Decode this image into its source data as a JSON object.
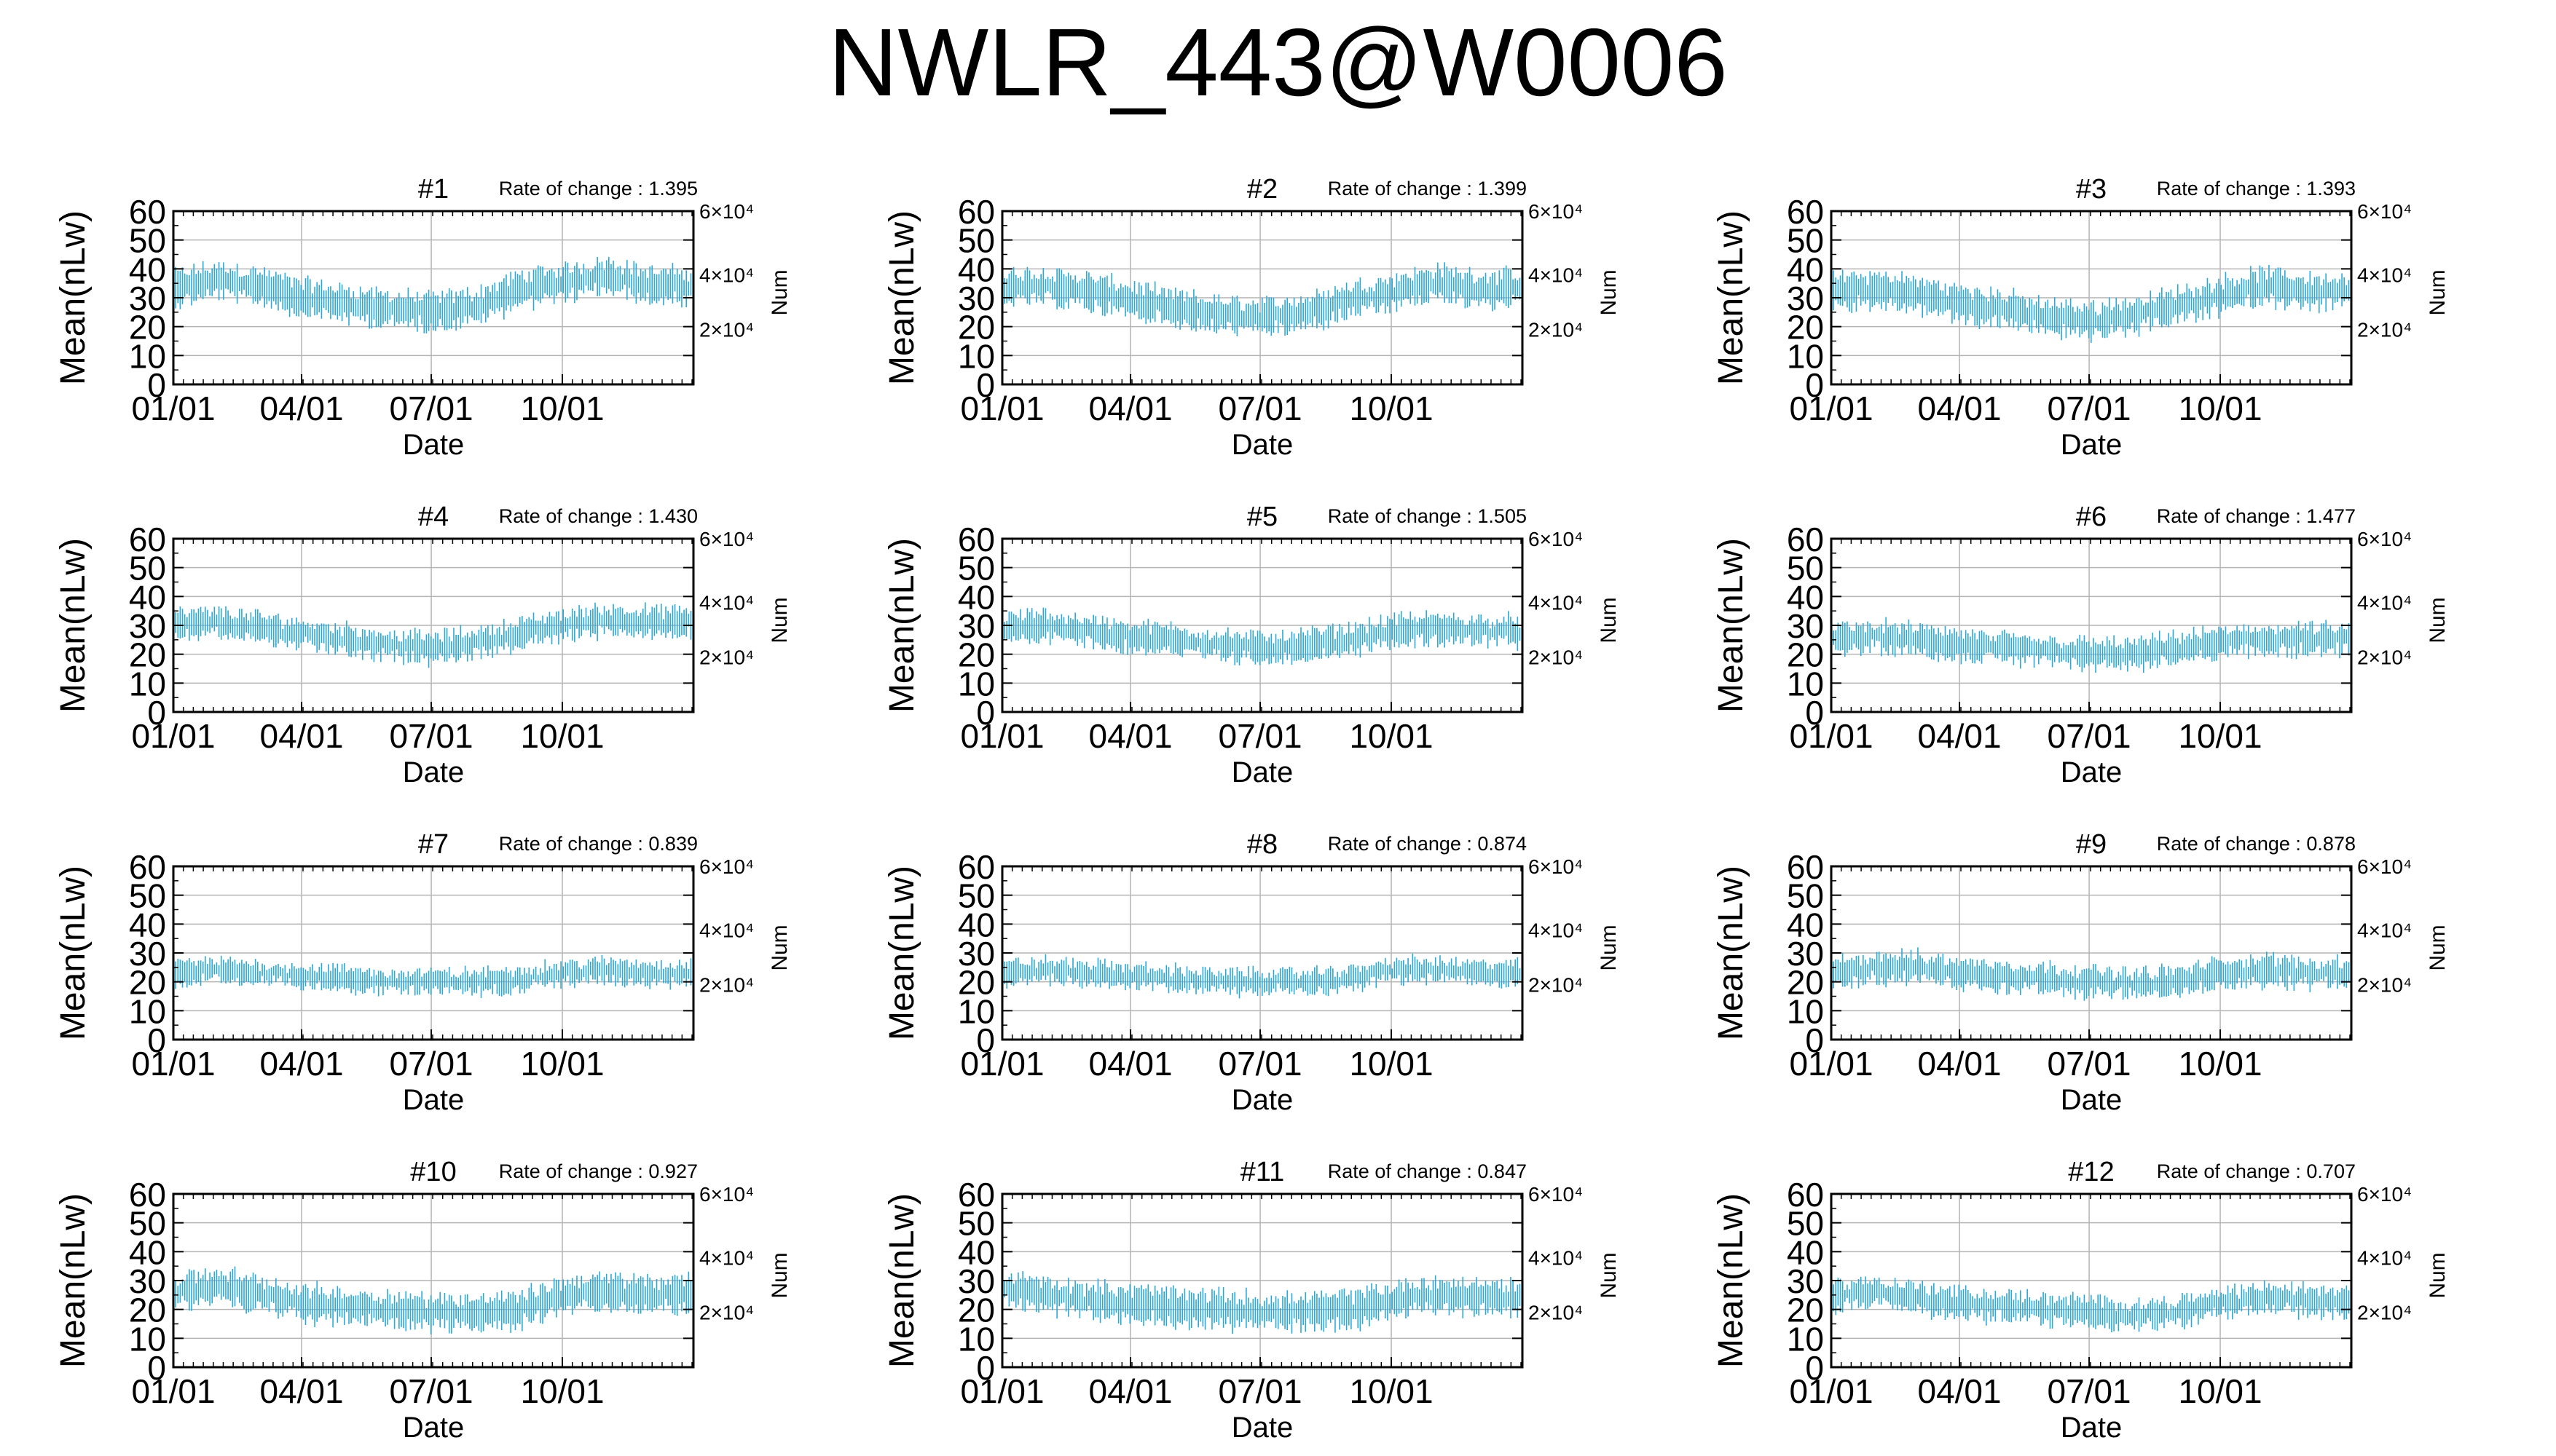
{
  "figure": {
    "title": "NWLR_443@W0006"
  },
  "colors": {
    "data": "#2aa8d8",
    "grid": "#b4b4b4",
    "axis": "#000000"
  },
  "chart_data": [
    {
      "type": "scatter",
      "title": "#1",
      "rate_label": "Rate of change : 1.395",
      "xlabel": "Date",
      "ylabel": "Mean(nLw)",
      "y2label": "Num",
      "x_ticks": [
        "01/01",
        "04/01",
        "07/01",
        "10/01"
      ],
      "y_ticks": [
        "0",
        "10",
        "20",
        "30",
        "40",
        "50",
        "60"
      ],
      "y2_ticks": [
        "2×10⁴",
        "4×10⁴",
        "6×10⁴"
      ],
      "ylim": [
        0,
        60
      ],
      "grid": true,
      "series_profile": {
        "months": [
          "01",
          "02",
          "03",
          "04",
          "05",
          "06",
          "07",
          "08",
          "09",
          "10",
          "11",
          "12"
        ],
        "mean_values": [
          33,
          36,
          34,
          30,
          28,
          26,
          25,
          27,
          33,
          35,
          38,
          34
        ],
        "spread": 6
      }
    },
    {
      "type": "scatter",
      "title": "#2",
      "rate_label": "Rate of change : 1.399",
      "xlabel": "Date",
      "ylabel": "Mean(nLw)",
      "y2label": "Num",
      "x_ticks": [
        "01/01",
        "04/01",
        "07/01",
        "10/01"
      ],
      "y_ticks": [
        "0",
        "10",
        "20",
        "30",
        "40",
        "50",
        "60"
      ],
      "y2_ticks": [
        "2×10⁴",
        "4×10⁴",
        "6×10⁴"
      ],
      "ylim": [
        0,
        60
      ],
      "grid": true,
      "series_profile": {
        "months": [
          "01",
          "02",
          "03",
          "04",
          "05",
          "06",
          "07",
          "08",
          "09",
          "10",
          "11",
          "12"
        ],
        "mean_values": [
          33,
          34,
          32,
          29,
          26,
          24,
          23,
          25,
          29,
          32,
          35,
          33
        ],
        "spread": 6
      }
    },
    {
      "type": "scatter",
      "title": "#3",
      "rate_label": "Rate of change : 1.393",
      "xlabel": "Date",
      "ylabel": "Mean(nLw)",
      "y2label": "Num",
      "x_ticks": [
        "01/01",
        "04/01",
        "07/01",
        "10/01"
      ],
      "y_ticks": [
        "0",
        "10",
        "20",
        "30",
        "40",
        "50",
        "60"
      ],
      "y2_ticks": [
        "2×10⁴",
        "4×10⁴",
        "6×10⁴"
      ],
      "ylim": [
        0,
        60
      ],
      "grid": true,
      "series_profile": {
        "months": [
          "01",
          "02",
          "03",
          "04",
          "05",
          "06",
          "07",
          "08",
          "09",
          "10",
          "11",
          "12"
        ],
        "mean_values": [
          32,
          33,
          31,
          28,
          26,
          23,
          22,
          24,
          27,
          31,
          34,
          32
        ],
        "spread": 6
      }
    },
    {
      "type": "scatter",
      "title": "#4",
      "rate_label": "Rate of change : 1.430",
      "xlabel": "Date",
      "ylabel": "Mean(nLw)",
      "y2label": "Num",
      "x_ticks": [
        "01/01",
        "04/01",
        "07/01",
        "10/01"
      ],
      "y_ticks": [
        "0",
        "10",
        "20",
        "30",
        "40",
        "50",
        "60"
      ],
      "y2_ticks": [
        "2×10⁴",
        "4×10⁴",
        "6×10⁴"
      ],
      "ylim": [
        0,
        60
      ],
      "grid": true,
      "series_profile": {
        "months": [
          "01",
          "02",
          "03",
          "04",
          "05",
          "06",
          "07",
          "08",
          "09",
          "10",
          "11",
          "12"
        ],
        "mean_values": [
          30,
          31,
          29,
          27,
          25,
          23,
          22,
          24,
          27,
          30,
          32,
          31
        ],
        "spread": 5
      }
    },
    {
      "type": "scatter",
      "title": "#5",
      "rate_label": "Rate of change : 1.505",
      "xlabel": "Date",
      "ylabel": "Mean(nLw)",
      "y2label": "Num",
      "x_ticks": [
        "01/01",
        "04/01",
        "07/01",
        "10/01"
      ],
      "y_ticks": [
        "0",
        "10",
        "20",
        "30",
        "40",
        "50",
        "60"
      ],
      "y2_ticks": [
        "2×10⁴",
        "4×10⁴",
        "6×10⁴"
      ],
      "ylim": [
        0,
        60
      ],
      "grid": true,
      "series_profile": {
        "months": [
          "01",
          "02",
          "03",
          "04",
          "05",
          "06",
          "07",
          "08",
          "09",
          "10",
          "11",
          "12"
        ],
        "mean_values": [
          29,
          30,
          28,
          26,
          25,
          23,
          22,
          23,
          25,
          28,
          29,
          28
        ],
        "spread": 5
      }
    },
    {
      "type": "scatter",
      "title": "#6",
      "rate_label": "Rate of change : 1.477",
      "xlabel": "Date",
      "ylabel": "Mean(nLw)",
      "y2label": "Num",
      "x_ticks": [
        "01/01",
        "04/01",
        "07/01",
        "10/01"
      ],
      "y_ticks": [
        "0",
        "10",
        "20",
        "30",
        "40",
        "50",
        "60"
      ],
      "y2_ticks": [
        "2×10⁴",
        "4×10⁴",
        "6×10⁴"
      ],
      "ylim": [
        0,
        60
      ],
      "grid": true,
      "series_profile": {
        "months": [
          "01",
          "02",
          "03",
          "04",
          "05",
          "06",
          "07",
          "08",
          "09",
          "10",
          "11",
          "12"
        ],
        "mean_values": [
          25,
          26,
          25,
          23,
          22,
          21,
          20,
          20,
          22,
          24,
          25,
          25
        ],
        "spread": 5
      }
    },
    {
      "type": "scatter",
      "title": "#7",
      "rate_label": "Rate of change : 0.839",
      "xlabel": "Date",
      "ylabel": "Mean(nLw)",
      "y2label": "Num",
      "x_ticks": [
        "01/01",
        "04/01",
        "07/01",
        "10/01"
      ],
      "y_ticks": [
        "0",
        "10",
        "20",
        "30",
        "40",
        "50",
        "60"
      ],
      "y2_ticks": [
        "2×10⁴",
        "4×10⁴",
        "6×10⁴"
      ],
      "ylim": [
        0,
        60
      ],
      "grid": true,
      "series_profile": {
        "months": [
          "01",
          "02",
          "03",
          "04",
          "05",
          "06",
          "07",
          "08",
          "09",
          "10",
          "11",
          "12"
        ],
        "mean_values": [
          23,
          24,
          23,
          22,
          21,
          20,
          20,
          20,
          21,
          23,
          24,
          23
        ],
        "spread": 4
      }
    },
    {
      "type": "scatter",
      "title": "#8",
      "rate_label": "Rate of change : 0.874",
      "xlabel": "Date",
      "ylabel": "Mean(nLw)",
      "y2label": "Num",
      "x_ticks": [
        "01/01",
        "04/01",
        "07/01",
        "10/01"
      ],
      "y_ticks": [
        "0",
        "10",
        "20",
        "30",
        "40",
        "50",
        "60"
      ],
      "y2_ticks": [
        "2×10⁴",
        "4×10⁴",
        "6×10⁴"
      ],
      "ylim": [
        0,
        60
      ],
      "grid": true,
      "series_profile": {
        "months": [
          "01",
          "02",
          "03",
          "04",
          "05",
          "06",
          "07",
          "08",
          "09",
          "10",
          "11",
          "12"
        ],
        "mean_values": [
          23,
          24,
          23,
          22,
          21,
          20,
          20,
          20,
          21,
          24,
          24,
          23
        ],
        "spread": 4
      }
    },
    {
      "type": "scatter",
      "title": "#9",
      "rate_label": "Rate of change : 0.878",
      "xlabel": "Date",
      "ylabel": "Mean(nLw)",
      "y2label": "Num",
      "x_ticks": [
        "01/01",
        "04/01",
        "07/01",
        "10/01"
      ],
      "y_ticks": [
        "0",
        "10",
        "20",
        "30",
        "40",
        "50",
        "60"
      ],
      "y2_ticks": [
        "2×10⁴",
        "4×10⁴",
        "6×10⁴"
      ],
      "ylim": [
        0,
        60
      ],
      "grid": true,
      "series_profile": {
        "months": [
          "01",
          "02",
          "03",
          "04",
          "05",
          "06",
          "07",
          "08",
          "09",
          "10",
          "11",
          "12"
        ],
        "mean_values": [
          23,
          25,
          25,
          23,
          22,
          21,
          20,
          19,
          20,
          23,
          24,
          23
        ],
        "spread": 5
      }
    },
    {
      "type": "scatter",
      "title": "#10",
      "rate_label": "Rate of change : 0.927",
      "xlabel": "Date",
      "ylabel": "Mean(nLw)",
      "y2label": "Num",
      "x_ticks": [
        "01/01",
        "04/01",
        "07/01",
        "10/01"
      ],
      "y_ticks": [
        "0",
        "10",
        "20",
        "30",
        "40",
        "50",
        "60"
      ],
      "y2_ticks": [
        "2×10⁴",
        "4×10⁴",
        "6×10⁴"
      ],
      "ylim": [
        0,
        60
      ],
      "grid": true,
      "series_profile": {
        "months": [
          "01",
          "02",
          "03",
          "04",
          "05",
          "06",
          "07",
          "08",
          "09",
          "10",
          "11",
          "12"
        ],
        "mean_values": [
          26,
          28,
          25,
          22,
          21,
          20,
          19,
          19,
          20,
          25,
          26,
          25
        ],
        "spread": 6
      }
    },
    {
      "type": "scatter",
      "title": "#11",
      "rate_label": "Rate of change : 0.847",
      "xlabel": "Date",
      "ylabel": "Mean(nLw)",
      "y2label": "Num",
      "x_ticks": [
        "01/01",
        "04/01",
        "07/01",
        "10/01"
      ],
      "y_ticks": [
        "0",
        "10",
        "20",
        "30",
        "40",
        "50",
        "60"
      ],
      "y2_ticks": [
        "2×10⁴",
        "4×10⁴",
        "6×10⁴"
      ],
      "ylim": [
        0,
        60
      ],
      "grid": true,
      "series_profile": {
        "months": [
          "01",
          "02",
          "03",
          "04",
          "05",
          "06",
          "07",
          "08",
          "09",
          "10",
          "11",
          "12"
        ],
        "mean_values": [
          27,
          25,
          23,
          22,
          21,
          20,
          19,
          19,
          20,
          23,
          25,
          24
        ],
        "spread": 6
      }
    },
    {
      "type": "scatter",
      "title": "#12",
      "rate_label": "Rate of change : 0.707",
      "xlabel": "Date",
      "ylabel": "Mean(nLw)",
      "y2label": "Num",
      "x_ticks": [
        "01/01",
        "04/01",
        "07/01",
        "10/01"
      ],
      "y_ticks": [
        "0",
        "10",
        "20",
        "30",
        "40",
        "50",
        "60"
      ],
      "y2_ticks": [
        "2×10⁴",
        "4×10⁴",
        "6×10⁴"
      ],
      "ylim": [
        0,
        60
      ],
      "grid": true,
      "series_profile": {
        "months": [
          "01",
          "02",
          "03",
          "04",
          "05",
          "06",
          "07",
          "08",
          "09",
          "10",
          "11",
          "12"
        ],
        "mean_values": [
          25,
          26,
          24,
          22,
          21,
          20,
          19,
          18,
          19,
          22,
          24,
          23
        ],
        "spread": 5
      }
    }
  ]
}
